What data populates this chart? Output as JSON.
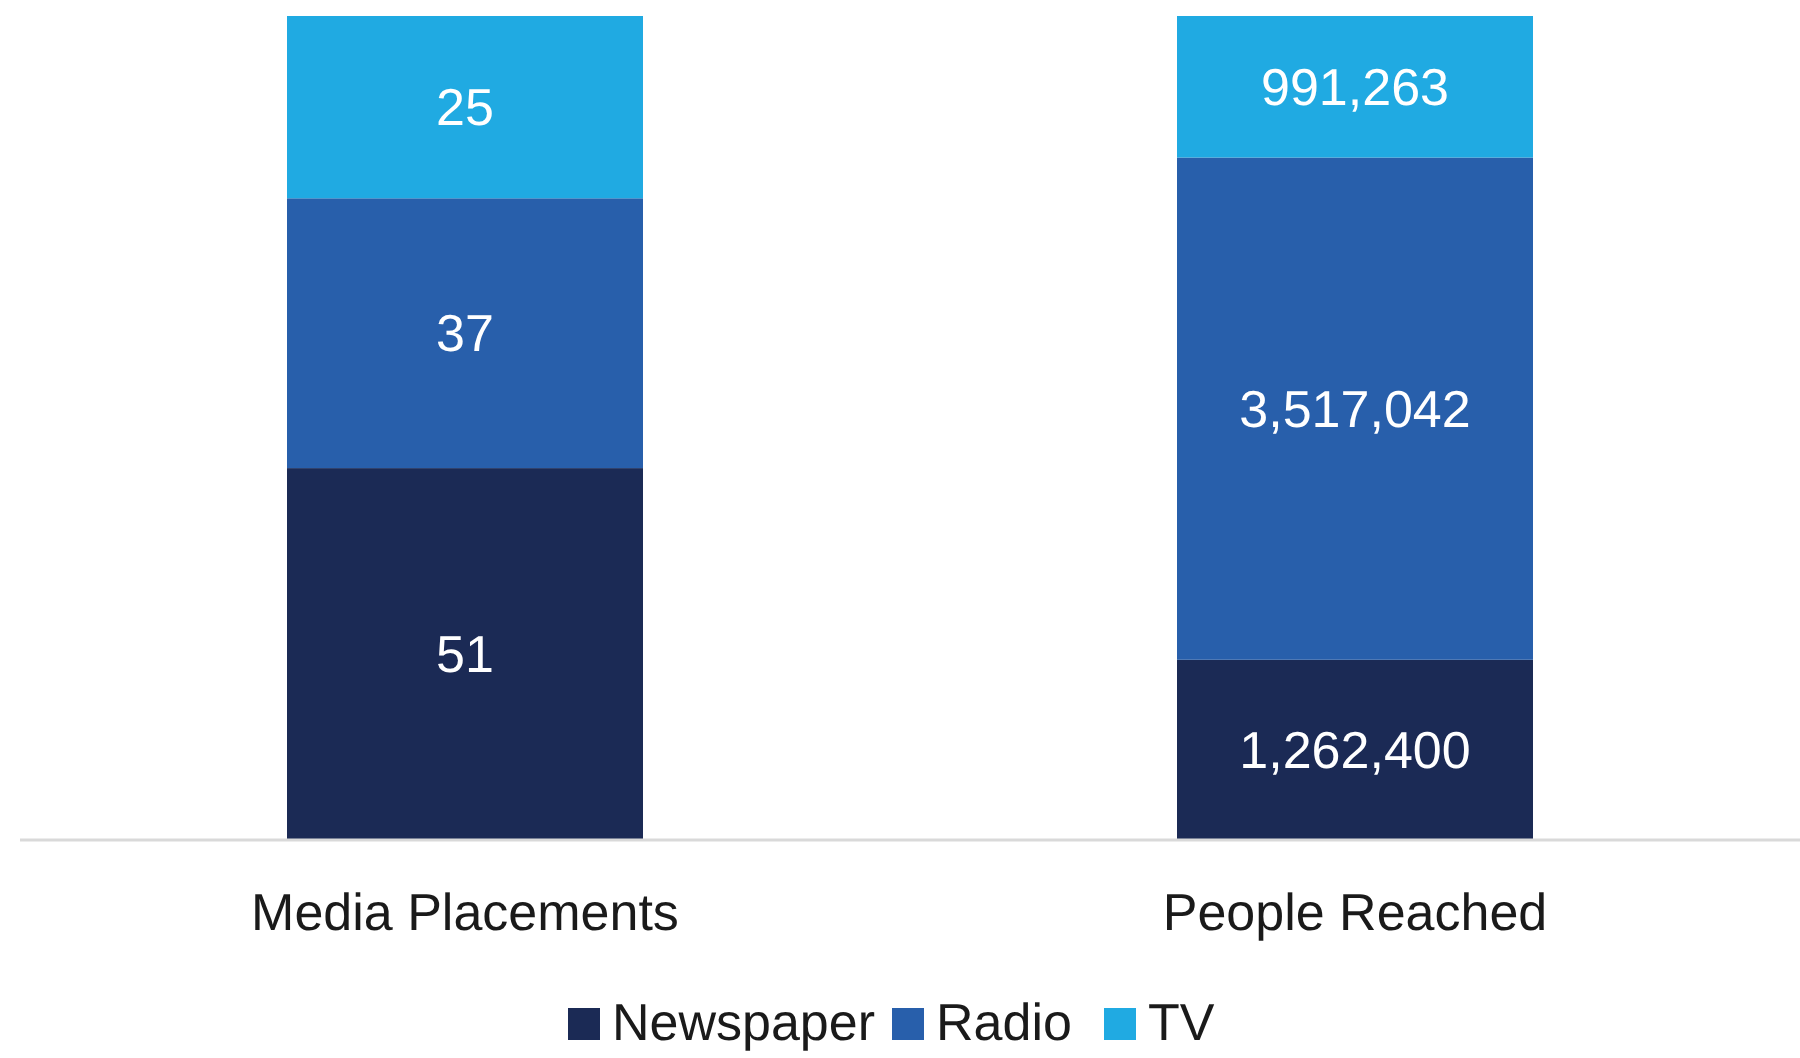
{
  "chart_data": [
    {
      "type": "bar",
      "stacked": true,
      "categories": [
        "Media Placements"
      ],
      "series": [
        {
          "color": "#1b2a55",
          "values": [
            51
          ],
          "value_labels": [
            "51"
          ]
        },
        {
          "color": "#285fab",
          "values": [
            37
          ],
          "value_labels": [
            "37"
          ]
        },
        {
          "color": "#20aae2",
          "values": [
            25
          ],
          "value_labels": [
            "25"
          ]
        }
      ]
    },
    {
      "type": "bar",
      "stacked": true,
      "categories": [
        "People Reached"
      ],
      "series": [
        {
          "name": "Newspaper",
          "color": "#1b2a55",
          "values": [
            1262400
          ],
          "value_labels": [
            "1,262,400"
          ]
        },
        {
          "name": "Radio",
          "color": "#285fab",
          "values": [
            3517042
          ],
          "value_labels": [
            "3,517,042"
          ]
        },
        {
          "name": "TV",
          "color": "#20aae2",
          "values": [
            991263
          ],
          "value_labels": [
            "991,263"
          ]
        }
      ],
      "legend": "bottom"
    }
  ]
}
